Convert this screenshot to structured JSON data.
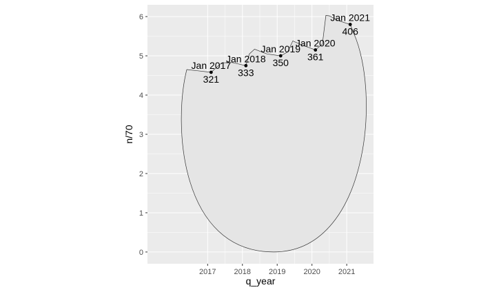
{
  "chart_data": {
    "type": "line",
    "title": "",
    "xlabel": "q_year",
    "ylabel": "n/70",
    "xlim": [
      2015.27,
      2021.77
    ],
    "ylim": [
      -0.3,
      6.3
    ],
    "grid": true,
    "x_ticks": [
      2017,
      2018,
      2019,
      2020,
      2021
    ],
    "y_ticks": [
      0,
      1,
      2,
      3,
      4,
      5,
      6
    ],
    "outline": {
      "x": [
        2016.4,
        2016.7,
        2017.1,
        2017.4,
        2017.7,
        2018.1,
        2018.2,
        2018.35,
        2018.7,
        2019.1,
        2019.3,
        2019.45,
        2019.7,
        2020.1,
        2020.3,
        2020.4,
        2020.5,
        2020.75,
        2021.1,
        2021.2
      ],
      "y": [
        4.65,
        4.62,
        4.58,
        4.82,
        4.83,
        4.75,
        5.05,
        5.17,
        5.05,
        5.0,
        5.1,
        5.38,
        5.28,
        5.15,
        5.3,
        6.03,
        6.02,
        5.9,
        5.8,
        5.58
      ],
      "bottom": [
        2018.9,
        0.0
      ]
    },
    "points": [
      {
        "x": 2017.1,
        "y": 4.58,
        "date_label": "Jan 2017",
        "count_label": "321"
      },
      {
        "x": 2018.1,
        "y": 4.75,
        "date_label": "Jan 2018",
        "count_label": "333"
      },
      {
        "x": 2019.1,
        "y": 5.0,
        "date_label": "Jan 2019",
        "count_label": "350"
      },
      {
        "x": 2020.1,
        "y": 5.15,
        "date_label": "Jan 2020",
        "count_label": "361"
      },
      {
        "x": 2021.1,
        "y": 5.8,
        "date_label": "Jan 2021",
        "count_label": "406"
      }
    ]
  },
  "colors": {
    "panel_background": "#ebebeb",
    "grid_major": "#ffffff",
    "shape_fill": "#e5e5e5",
    "shape_stroke": "#333333",
    "point": "#000000"
  }
}
